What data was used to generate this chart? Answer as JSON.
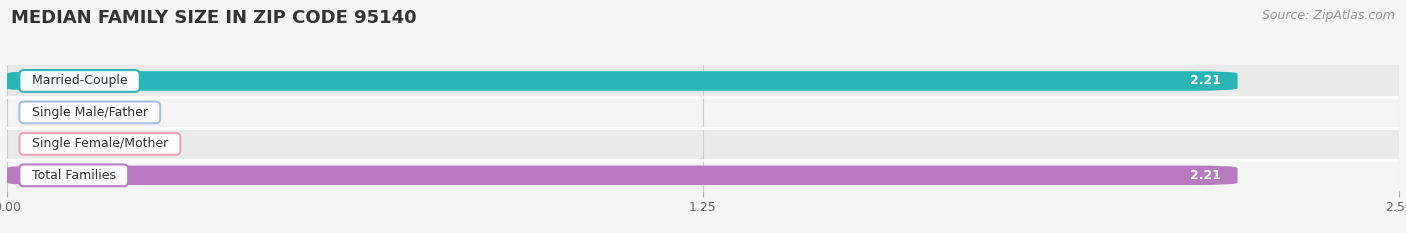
{
  "title": "MEDIAN FAMILY SIZE IN ZIP CODE 95140",
  "source": "Source: ZipAtlas.com",
  "categories": [
    "Married-Couple",
    "Single Male/Father",
    "Single Female/Mother",
    "Total Families"
  ],
  "values": [
    2.21,
    0.0,
    0.0,
    2.21
  ],
  "bar_colors": [
    "#29b5b5",
    "#a8bce8",
    "#f2a0b8",
    "#b87bbf"
  ],
  "label_border_colors": [
    "#29b5b5",
    "#a8bce8",
    "#f2a0b8",
    "#b87bbf"
  ],
  "xlim": [
    0,
    2.5
  ],
  "xticks": [
    0.0,
    1.25,
    2.5
  ],
  "bar_height": 0.62,
  "row_bg_even": "#ebebeb",
  "row_bg_odd": "#f5f5f5",
  "title_fontsize": 13,
  "source_fontsize": 9,
  "label_fontsize": 9,
  "value_fontsize": 9
}
